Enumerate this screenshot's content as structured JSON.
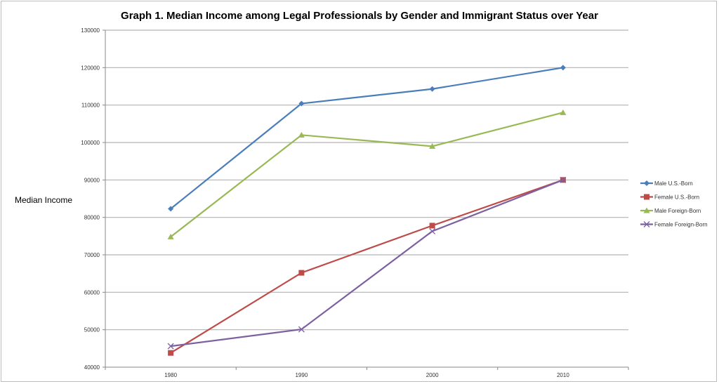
{
  "chart_data": {
    "type": "line",
    "title": "Graph 1. Median Income among Legal Professionals by Gender and Immigrant Status over Year",
    "xlabel": "",
    "ylabel": "Median Income",
    "categories": [
      "1980",
      "1990",
      "2000",
      "2010"
    ],
    "ylim": [
      40000,
      130000
    ],
    "yticks": [
      "40000",
      "50000",
      "60000",
      "70000",
      "80000",
      "90000",
      "100000",
      "110000",
      "120000",
      "130000"
    ],
    "grid": true,
    "legend": "right",
    "series": [
      {
        "name": "Male U.S.-Born",
        "color": "#4a7ebb",
        "marker": "diamond",
        "values": [
          82300,
          110400,
          114300,
          120000
        ]
      },
      {
        "name": "Female U.S.-Born",
        "color": "#be4b48",
        "marker": "square",
        "values": [
          43800,
          65200,
          77800,
          90000
        ]
      },
      {
        "name": "Male Foreign-Born",
        "color": "#98b954",
        "marker": "triangle",
        "values": [
          74800,
          102000,
          99000,
          108000
        ]
      },
      {
        "name": "Female Foreign-Born",
        "color": "#7d60a0",
        "marker": "x",
        "values": [
          45600,
          50100,
          76300,
          90000
        ]
      }
    ]
  }
}
